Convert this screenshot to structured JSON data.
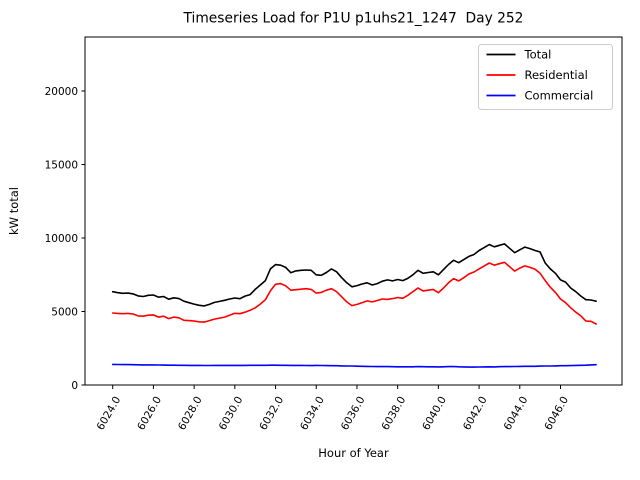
{
  "window": {
    "background": "#ffffff"
  },
  "chart_data": {
    "type": "line",
    "title": "Timeseries Load for P1U p1uhs21_1247  Day 252",
    "xlabel": "Hour of Year",
    "ylabel": "kW total",
    "grid": false,
    "legend_position": "upper right",
    "legend_entries": [
      "Total",
      "Residential",
      "Commercial"
    ],
    "xlim": [
      6022.8,
      6049.1
    ],
    "ylim": [
      0,
      23600
    ],
    "xticks": [
      6024,
      6026,
      6028,
      6030,
      6032,
      6034,
      6036,
      6038,
      6040,
      6042,
      6044,
      6046
    ],
    "xtick_labels": [
      "6024.0",
      "6026.0",
      "6028.0",
      "6030.0",
      "6032.0",
      "6034.0",
      "6036.0",
      "6038.0",
      "6040.0",
      "6042.0",
      "6044.0",
      "6046.0"
    ],
    "yticks": [
      0,
      5000,
      10000,
      15000,
      20000
    ],
    "ytick_labels": [
      "0",
      "5000",
      "10000",
      "15000",
      "20000"
    ],
    "x_units": "hour of year, 15-min resolution, day 252",
    "x": [
      6024.0,
      6024.25,
      6024.5,
      6024.75,
      6025.0,
      6025.25,
      6025.5,
      6025.75,
      6026.0,
      6026.25,
      6026.5,
      6026.75,
      6027.0,
      6027.25,
      6027.5,
      6027.75,
      6028.0,
      6028.25,
      6028.5,
      6028.75,
      6029.0,
      6029.25,
      6029.5,
      6029.75,
      6030.0,
      6030.25,
      6030.5,
      6030.75,
      6031.0,
      6031.25,
      6031.5,
      6031.75,
      6032.0,
      6032.25,
      6032.5,
      6032.75,
      6033.0,
      6033.25,
      6033.5,
      6033.75,
      6034.0,
      6034.25,
      6034.5,
      6034.75,
      6035.0,
      6035.25,
      6035.5,
      6035.75,
      6036.0,
      6036.25,
      6036.5,
      6036.75,
      6037.0,
      6037.25,
      6037.5,
      6037.75,
      6038.0,
      6038.25,
      6038.5,
      6038.75,
      6039.0,
      6039.25,
      6039.5,
      6039.75,
      6040.0,
      6040.25,
      6040.5,
      6040.75,
      6041.0,
      6041.25,
      6041.5,
      6041.75,
      6042.0,
      6042.25,
      6042.5,
      6042.75,
      6043.0,
      6043.25,
      6043.5,
      6043.75,
      6044.0,
      6044.25,
      6044.5,
      6044.75,
      6045.0,
      6045.25,
      6045.5,
      6045.75,
      6046.0,
      6046.25,
      6046.5,
      6046.75,
      6047.0,
      6047.25,
      6047.5,
      6047.75
    ],
    "series": [
      {
        "name": "Total",
        "color": "#000000",
        "values": [
          6350,
          6280,
          6240,
          6250,
          6200,
          6060,
          6020,
          6100,
          6120,
          5970,
          6020,
          5840,
          5930,
          5880,
          5700,
          5600,
          5500,
          5420,
          5380,
          5480,
          5620,
          5690,
          5760,
          5850,
          5920,
          5870,
          6050,
          6150,
          6500,
          6800,
          7100,
          7900,
          8190,
          8150,
          8000,
          7640,
          7760,
          7800,
          7820,
          7800,
          7500,
          7460,
          7650,
          7900,
          7700,
          7300,
          6950,
          6680,
          6760,
          6870,
          6950,
          6800,
          6900,
          7060,
          7150,
          7080,
          7180,
          7100,
          7250,
          7500,
          7800,
          7600,
          7650,
          7700,
          7500,
          7850,
          8200,
          8480,
          8320,
          8530,
          8750,
          8880,
          9150,
          9350,
          9560,
          9400,
          9500,
          9600,
          9300,
          9000,
          9200,
          9380,
          9280,
          9150,
          9050,
          8300,
          7900,
          7600,
          7150,
          7000,
          6600,
          6350,
          6050,
          5800,
          5780,
          5700
        ]
      },
      {
        "name": "Residential",
        "color": "#ff0000",
        "values": [
          4900,
          4870,
          4850,
          4870,
          4830,
          4700,
          4680,
          4750,
          4770,
          4620,
          4680,
          4520,
          4620,
          4570,
          4400,
          4380,
          4350,
          4300,
          4280,
          4380,
          4480,
          4550,
          4620,
          4750,
          4880,
          4850,
          4950,
          5080,
          5250,
          5500,
          5800,
          6400,
          6850,
          6900,
          6750,
          6450,
          6480,
          6520,
          6550,
          6500,
          6250,
          6300,
          6450,
          6550,
          6350,
          6000,
          5650,
          5400,
          5480,
          5600,
          5720,
          5650,
          5750,
          5850,
          5820,
          5880,
          5950,
          5900,
          6100,
          6350,
          6600,
          6400,
          6450,
          6500,
          6280,
          6600,
          6950,
          7240,
          7080,
          7300,
          7550,
          7690,
          7900,
          8100,
          8300,
          8150,
          8250,
          8350,
          8050,
          7750,
          7950,
          8100,
          8000,
          7880,
          7600,
          7100,
          6650,
          6300,
          5850,
          5600,
          5250,
          4950,
          4700,
          4350,
          4330,
          4150
        ]
      },
      {
        "name": "Commercial",
        "color": "#0000ff",
        "values": [
          1400,
          1395,
          1390,
          1385,
          1380,
          1375,
          1370,
          1365,
          1365,
          1360,
          1355,
          1350,
          1345,
          1340,
          1340,
          1335,
          1330,
          1330,
          1325,
          1325,
          1330,
          1330,
          1330,
          1335,
          1335,
          1335,
          1335,
          1340,
          1340,
          1340,
          1340,
          1345,
          1345,
          1340,
          1340,
          1335,
          1330,
          1330,
          1325,
          1320,
          1330,
          1325,
          1320,
          1315,
          1310,
          1300,
          1295,
          1290,
          1280,
          1270,
          1265,
          1260,
          1255,
          1250,
          1250,
          1245,
          1240,
          1240,
          1235,
          1240,
          1250,
          1245,
          1240,
          1235,
          1230,
          1240,
          1255,
          1260,
          1240,
          1230,
          1220,
          1215,
          1225,
          1230,
          1235,
          1230,
          1245,
          1250,
          1255,
          1260,
          1265,
          1270,
          1270,
          1275,
          1285,
          1290,
          1295,
          1300,
          1310,
          1315,
          1320,
          1330,
          1340,
          1350,
          1365,
          1380
        ]
      }
    ]
  }
}
